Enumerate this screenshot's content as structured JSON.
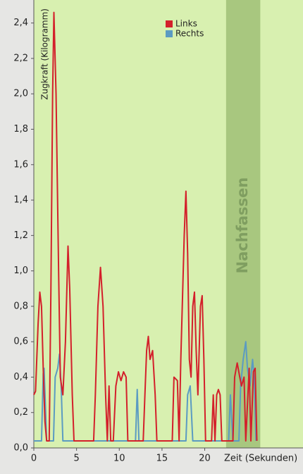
{
  "chart_data": {
    "type": "line",
    "y_label": "Zugkraft (Kilogramm)",
    "x_label": "Zeit (Sekunden)",
    "highlight": {
      "label": "Nachfassen",
      "xrange": [
        22.5,
        26.5
      ],
      "color": "#a8c77f"
    },
    "xlim": [
      0,
      31.5
    ],
    "ylim": [
      0,
      2.53
    ],
    "xticks": [
      0,
      5,
      10,
      15,
      20
    ],
    "yticks": [
      {
        "value": 0,
        "label": "0,0"
      },
      {
        "value": 0.2,
        "label": "0,2"
      },
      {
        "value": 0.4,
        "label": "0,4"
      },
      {
        "value": 0.6,
        "label": "0,6"
      },
      {
        "value": 0.8,
        "label": "0,8"
      },
      {
        "value": 1.0,
        "label": "1,0"
      },
      {
        "value": 1.2,
        "label": "1,2"
      },
      {
        "value": 1.4,
        "label": "1,4"
      },
      {
        "value": 1.6,
        "label": "1,6"
      },
      {
        "value": 1.8,
        "label": "1,8"
      },
      {
        "value": 2.0,
        "label": "2,0"
      },
      {
        "value": 2.2,
        "label": "2,2"
      },
      {
        "value": 2.4,
        "label": "2,4"
      }
    ],
    "legend": "top-center",
    "series": [
      {
        "name": "Links",
        "color": "#d3202b",
        "x": [
          0,
          0.2,
          0.5,
          0.7,
          0.9,
          1.1,
          1.3,
          1.5,
          1.8,
          2.0,
          2.2,
          2.35,
          2.6,
          2.9,
          3.1,
          3.4,
          3.7,
          4.0,
          4.2,
          4.5,
          4.7,
          7.0,
          7.2,
          7.5,
          7.8,
          8.1,
          8.4,
          8.6,
          8.8,
          9.0,
          9.3,
          9.6,
          9.9,
          10.2,
          10.5,
          10.8,
          11.0,
          12.8,
          13.0,
          13.2,
          13.4,
          13.6,
          13.9,
          14.2,
          14.4,
          16.2,
          16.4,
          16.8,
          17.0,
          17.2,
          17.6,
          17.8,
          18.0,
          18.2,
          18.4,
          18.6,
          18.8,
          19.0,
          19.2,
          19.5,
          19.7,
          19.9,
          20.1,
          20.8,
          21.0,
          21.2,
          21.4,
          21.6,
          21.8,
          22.0,
          23.3,
          23.5,
          23.8,
          24.1,
          24.3,
          24.6,
          24.8,
          25.2,
          25.4,
          25.7,
          25.9,
          26.1
        ],
        "values": [
          0.3,
          0.32,
          0.7,
          0.88,
          0.8,
          0.45,
          0.15,
          0.04,
          0.04,
          0.9,
          2.0,
          2.46,
          2.0,
          1.0,
          0.4,
          0.3,
          0.6,
          1.14,
          0.9,
          0.3,
          0.04,
          0.04,
          0.3,
          0.8,
          1.02,
          0.8,
          0.3,
          0.04,
          0.35,
          0.04,
          0.04,
          0.35,
          0.43,
          0.38,
          0.43,
          0.4,
          0.04,
          0.04,
          0.3,
          0.55,
          0.63,
          0.5,
          0.55,
          0.3,
          0.04,
          0.04,
          0.4,
          0.38,
          0.04,
          0.5,
          1.2,
          1.45,
          1.1,
          0.5,
          0.4,
          0.8,
          0.88,
          0.55,
          0.3,
          0.8,
          0.86,
          0.5,
          0.04,
          0.04,
          0.3,
          0.04,
          0.3,
          0.33,
          0.3,
          0.04,
          0.04,
          0.4,
          0.48,
          0.4,
          0.35,
          0.4,
          0.04,
          0.45,
          0.04,
          0.43,
          0.45,
          0.04
        ]
      },
      {
        "name": "Rechts",
        "color": "#5b9bc2",
        "x": [
          0,
          0.9,
          1.1,
          1.2,
          1.5,
          2.3,
          2.5,
          2.8,
          3.0,
          3.2,
          3.4,
          11.9,
          12.1,
          12.3,
          17.8,
          18.0,
          18.3,
          18.6,
          22.8,
          23.0,
          23.3,
          24.0,
          24.2,
          24.5,
          24.8,
          25.0,
          25.3,
          25.6,
          25.8,
          26.0
        ],
        "values": [
          0.04,
          0.04,
          0.42,
          0.45,
          0.04,
          0.04,
          0.4,
          0.45,
          0.53,
          0.35,
          0.04,
          0.04,
          0.33,
          0.04,
          0.04,
          0.3,
          0.35,
          0.04,
          0.04,
          0.3,
          0.04,
          0.04,
          0.35,
          0.5,
          0.6,
          0.45,
          0.35,
          0.5,
          0.38,
          0.04
        ]
      }
    ]
  }
}
